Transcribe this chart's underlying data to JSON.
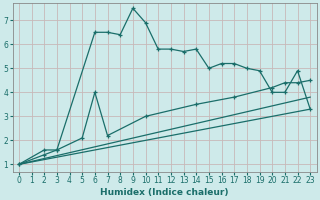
{
  "xlabel": "Humidex (Indice chaleur)",
  "background_color": "#ceeaea",
  "grid_color": "#aacfcf",
  "line_color": "#1a6e6a",
  "xlim": [
    -0.5,
    23.5
  ],
  "ylim": [
    0.7,
    7.7
  ],
  "xticks": [
    0,
    1,
    2,
    3,
    4,
    5,
    6,
    7,
    8,
    9,
    10,
    11,
    12,
    13,
    14,
    15,
    16,
    17,
    18,
    19,
    20,
    21,
    22,
    23
  ],
  "yticks": [
    1,
    2,
    3,
    4,
    5,
    6,
    7
  ],
  "line1_x": [
    0,
    2,
    3,
    6,
    7,
    8,
    9,
    10,
    11,
    12,
    13,
    14,
    15,
    16,
    17,
    18,
    19,
    20,
    21,
    22,
    23
  ],
  "line1_y": [
    1.0,
    1.4,
    1.6,
    6.5,
    6.5,
    6.4,
    7.5,
    6.9,
    5.8,
    5.8,
    5.7,
    5.8,
    5.0,
    5.2,
    5.2,
    5.0,
    4.9,
    4.0,
    4.0,
    4.9,
    3.3
  ],
  "line2_x": [
    0,
    2,
    3,
    5,
    6,
    7,
    10,
    14,
    17,
    20,
    21,
    22,
    23
  ],
  "line2_y": [
    1.0,
    1.6,
    1.6,
    2.1,
    4.0,
    2.2,
    3.0,
    3.5,
    3.8,
    4.2,
    4.4,
    4.4,
    4.5
  ],
  "line3_x": [
    0,
    23
  ],
  "line3_y": [
    1.0,
    3.3
  ],
  "line4_x": [
    0,
    23
  ],
  "line4_y": [
    1.0,
    3.8
  ]
}
